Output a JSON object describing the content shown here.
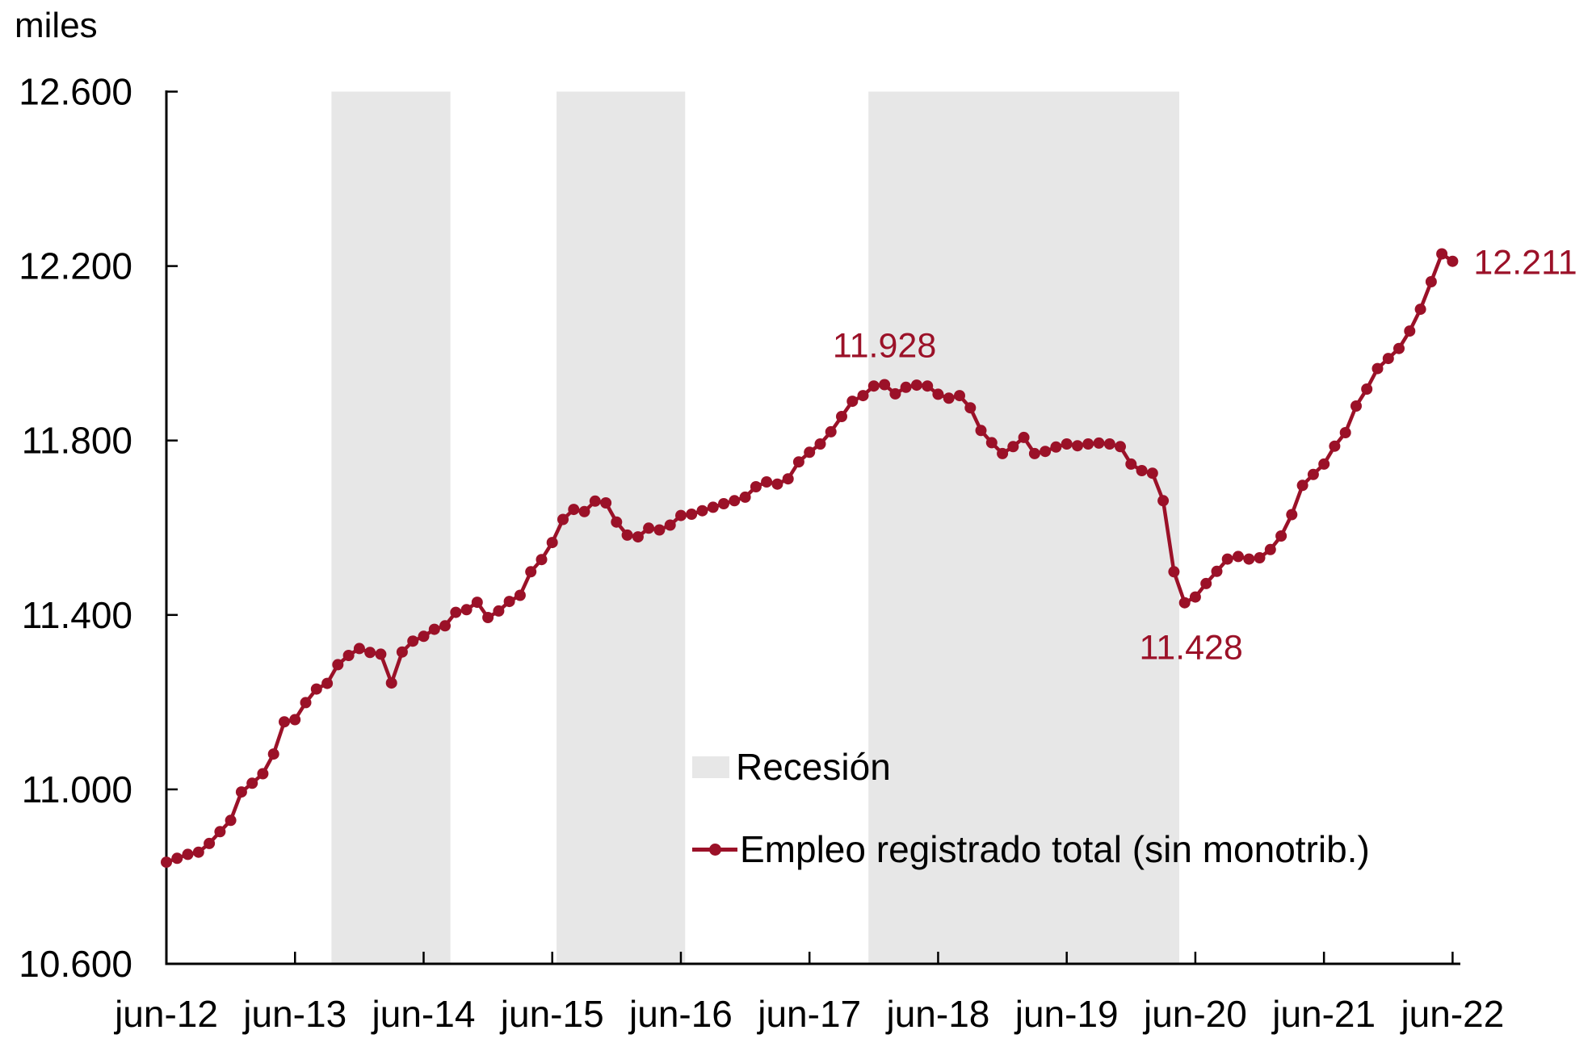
{
  "page": {
    "background": "#ffffff"
  },
  "chart_data": {
    "type": "line",
    "unit_label": "miles",
    "ylim": [
      10600,
      12600
    ],
    "y_ticks": [
      10600,
      11000,
      11400,
      11800,
      12200,
      12600
    ],
    "y_tick_labels": [
      "10.600",
      "11.000",
      "11.400",
      "11.800",
      "12.200",
      "12.600"
    ],
    "x_tick_labels": [
      "jun-12",
      "jun-13",
      "jun-14",
      "jun-15",
      "jun-16",
      "jun-17",
      "jun-18",
      "jun-19",
      "jun-20",
      "jun-21",
      "jun-22"
    ],
    "x_tick_month_indices": [
      0,
      12,
      24,
      36,
      48,
      60,
      72,
      84,
      96,
      108,
      120
    ],
    "grid": false,
    "series": [
      {
        "name": "Empleo registrado total (sin monotrib.)",
        "color": "#9b1128",
        "start": "jun-2012",
        "end": "jun-2022",
        "frequency": "monthly",
        "values": [
          10833,
          10842,
          10851,
          10856,
          10876,
          10903,
          10929,
          10994,
          11014,
          11036,
          11081,
          11155,
          11160,
          11199,
          11230,
          11243,
          11286,
          11307,
          11323,
          11314,
          11310,
          11244,
          11315,
          11340,
          11351,
          11367,
          11375,
          11406,
          11412,
          11429,
          11394,
          11409,
          11431,
          11445,
          11499,
          11527,
          11566,
          11619,
          11642,
          11637,
          11661,
          11657,
          11613,
          11583,
          11579,
          11599,
          11595,
          11606,
          11628,
          11631,
          11639,
          11647,
          11655,
          11662,
          11670,
          11694,
          11705,
          11700,
          11712,
          11751,
          11773,
          11792,
          11820,
          11855,
          11890,
          11903,
          11925,
          11928,
          11907,
          11922,
          11927,
          11925,
          11906,
          11897,
          11903,
          11875,
          11823,
          11795,
          11770,
          11786,
          11807,
          11770,
          11775,
          11785,
          11792,
          11788,
          11792,
          11794,
          11792,
          11786,
          11746,
          11731,
          11725,
          11662,
          11499,
          11428,
          11441,
          11472,
          11500,
          11528,
          11534,
          11528,
          11531,
          11550,
          11581,
          11630,
          11697,
          11722,
          11746,
          11787,
          11818,
          11879,
          11918,
          11965,
          11988,
          12011,
          12051,
          12101,
          12164,
          12228,
          12211
        ]
      }
    ],
    "recession_bands": [
      {
        "start_month_index": 15.4,
        "end_month_index": 26.5
      },
      {
        "start_month_index": 36.4,
        "end_month_index": 48.4
      },
      {
        "start_month_index": 65.5,
        "end_month_index": 94.5
      }
    ],
    "annotations": [
      {
        "label": "11.928",
        "month_index": 67,
        "value": 11928,
        "placement": "above"
      },
      {
        "label": "11.428",
        "month_index": 95,
        "value": 11428,
        "placement": "below"
      },
      {
        "label": "12.211",
        "month_index": 120,
        "value": 12211,
        "placement": "right"
      }
    ],
    "legend": {
      "recession_label": "Recesión",
      "series_label": "Empleo registrado total (sin monotrib.)"
    },
    "colors": {
      "line": "#9b1128",
      "recession_band": "#e7e7e7",
      "axis": "#000000",
      "text": "#000000",
      "annotation": "#9b1128"
    }
  }
}
